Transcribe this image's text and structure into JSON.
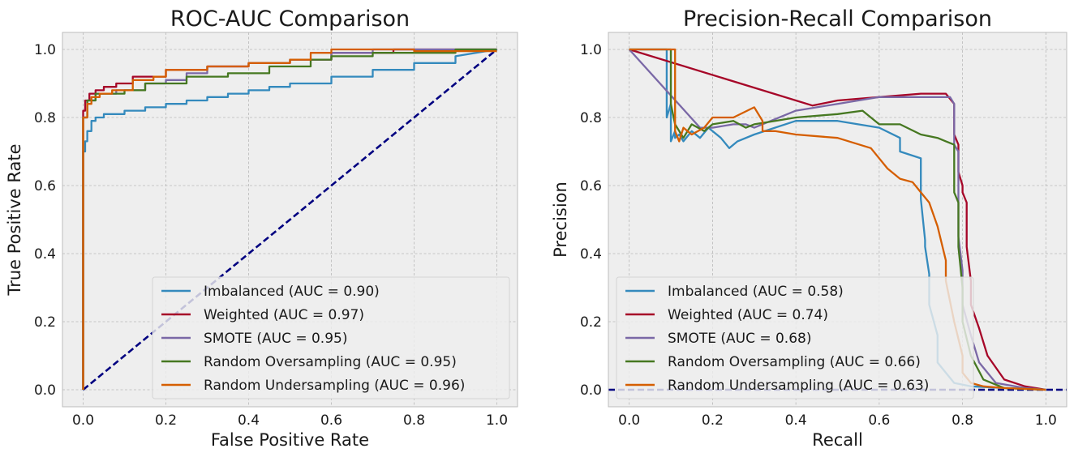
{
  "chart_data": [
    {
      "type": "line",
      "title": "ROC-AUC Comparison",
      "xlabel": "False Positive Rate",
      "ylabel": "True Positive Rate",
      "xlim": [
        -0.05,
        1.05
      ],
      "ylim": [
        -0.05,
        1.05
      ],
      "xticks": [
        "0.0",
        "0.2",
        "0.4",
        "0.6",
        "0.8",
        "1.0"
      ],
      "yticks": [
        "0.0",
        "0.2",
        "0.4",
        "0.6",
        "0.8",
        "1.0"
      ],
      "grid": true,
      "legend": "lower-right",
      "reference_line": {
        "x": [
          0,
          1
        ],
        "y": [
          0,
          1
        ],
        "color": "#000080",
        "style": "dashed"
      },
      "series": [
        {
          "name": "Imbalanced (AUC = 0.90)",
          "color": "#348abd",
          "x": [
            0,
            0,
            0.005,
            0.005,
            0.01,
            0.01,
            0.02,
            0.02,
            0.03,
            0.03,
            0.05,
            0.05,
            0.1,
            0.1,
            0.15,
            0.15,
            0.2,
            0.2,
            0.25,
            0.25,
            0.3,
            0.3,
            0.35,
            0.35,
            0.4,
            0.4,
            0.45,
            0.45,
            0.5,
            0.5,
            0.6,
            0.6,
            0.7,
            0.7,
            0.8,
            0.8,
            0.9,
            0.9,
            1.0
          ],
          "y": [
            0,
            0.7,
            0.7,
            0.73,
            0.73,
            0.76,
            0.76,
            0.79,
            0.79,
            0.8,
            0.8,
            0.81,
            0.81,
            0.82,
            0.82,
            0.83,
            0.83,
            0.84,
            0.84,
            0.85,
            0.85,
            0.86,
            0.86,
            0.87,
            0.87,
            0.88,
            0.88,
            0.89,
            0.89,
            0.9,
            0.9,
            0.92,
            0.92,
            0.94,
            0.94,
            0.96,
            0.96,
            0.98,
            1.0
          ]
        },
        {
          "name": "Weighted (AUC = 0.97)",
          "color": "#a60628",
          "x": [
            0,
            0,
            0.005,
            0.005,
            0.015,
            0.015,
            0.03,
            0.03,
            0.05,
            0.05,
            0.08,
            0.08,
            0.12,
            0.12,
            0.2,
            0.2,
            0.3,
            0.3,
            0.4,
            0.4,
            0.5,
            0.5,
            0.6,
            0.6,
            0.75,
            0.75,
            1.0
          ],
          "y": [
            0,
            0.82,
            0.82,
            0.85,
            0.85,
            0.87,
            0.87,
            0.88,
            0.88,
            0.89,
            0.89,
            0.9,
            0.9,
            0.92,
            0.92,
            0.94,
            0.94,
            0.95,
            0.95,
            0.96,
            0.96,
            0.97,
            0.97,
            0.99,
            0.99,
            1.0,
            1.0
          ]
        },
        {
          "name": "SMOTE (AUC = 0.95)",
          "color": "#7a68a6",
          "x": [
            0,
            0,
            0.01,
            0.01,
            0.03,
            0.03,
            0.08,
            0.08,
            0.15,
            0.15,
            0.2,
            0.2,
            0.25,
            0.25,
            0.3,
            0.3,
            0.4,
            0.4,
            0.5,
            0.5,
            0.6,
            0.6,
            0.7,
            0.7,
            1.0
          ],
          "y": [
            0,
            0.8,
            0.8,
            0.85,
            0.85,
            0.87,
            0.87,
            0.88,
            0.88,
            0.9,
            0.9,
            0.91,
            0.91,
            0.93,
            0.93,
            0.95,
            0.95,
            0.96,
            0.96,
            0.97,
            0.97,
            0.99,
            0.99,
            1.0,
            1.0
          ]
        },
        {
          "name": "Random Oversampling (AUC = 0.95)",
          "color": "#467821",
          "x": [
            0,
            0,
            0.01,
            0.01,
            0.03,
            0.03,
            0.1,
            0.1,
            0.15,
            0.15,
            0.25,
            0.25,
            0.35,
            0.35,
            0.45,
            0.45,
            0.55,
            0.55,
            0.6,
            0.6,
            0.7,
            0.7,
            0.9,
            0.9,
            1.0
          ],
          "y": [
            0,
            0.8,
            0.8,
            0.85,
            0.85,
            0.87,
            0.87,
            0.88,
            0.88,
            0.9,
            0.9,
            0.92,
            0.92,
            0.93,
            0.93,
            0.95,
            0.95,
            0.97,
            0.97,
            0.98,
            0.98,
            0.99,
            0.99,
            1.0,
            1.0
          ]
        },
        {
          "name": "Random Undersampling (AUC = 0.96)",
          "color": "#d55e00",
          "x": [
            0,
            0,
            0.01,
            0.01,
            0.02,
            0.02,
            0.04,
            0.04,
            0.07,
            0.07,
            0.12,
            0.12,
            0.17,
            0.17,
            0.2,
            0.2,
            0.3,
            0.3,
            0.4,
            0.4,
            0.5,
            0.5,
            0.55,
            0.55,
            0.6,
            0.6,
            0.8,
            0.8,
            1.0
          ],
          "y": [
            0,
            0.8,
            0.8,
            0.84,
            0.84,
            0.86,
            0.86,
            0.87,
            0.87,
            0.88,
            0.88,
            0.91,
            0.91,
            0.92,
            0.92,
            0.94,
            0.94,
            0.95,
            0.95,
            0.96,
            0.96,
            0.97,
            0.97,
            0.99,
            0.99,
            1.0,
            1.0,
            0.995,
            0.995
          ]
        }
      ]
    },
    {
      "type": "line",
      "title": "Precision-Recall Comparison",
      "xlabel": "Recall",
      "ylabel": "Precision",
      "xlim": [
        -0.05,
        1.05
      ],
      "ylim": [
        -0.05,
        1.05
      ],
      "xticks": [
        "0.0",
        "0.2",
        "0.4",
        "0.6",
        "0.8",
        "1.0"
      ],
      "yticks": [
        "0.0",
        "0.2",
        "0.4",
        "0.6",
        "0.8",
        "1.0"
      ],
      "grid": true,
      "legend": "lower-left",
      "reference_line": {
        "x": [
          -0.05,
          1.05
        ],
        "y": [
          0,
          0
        ],
        "color": "#000080",
        "style": "dashed"
      },
      "series": [
        {
          "name": "Imbalanced (AUC = 0.58)",
          "color": "#348abd",
          "x": [
            0,
            0.09,
            0.09,
            0.1,
            0.1,
            0.11,
            0.11,
            0.12,
            0.13,
            0.15,
            0.17,
            0.19,
            0.22,
            0.24,
            0.26,
            0.3,
            0.4,
            0.5,
            0.6,
            0.65,
            0.65,
            0.7,
            0.7,
            0.71,
            0.71,
            0.72,
            0.72,
            0.74,
            0.74,
            0.76,
            0.78,
            0.82,
            0.9,
            1.0
          ],
          "y": [
            1.0,
            1.0,
            0.8,
            0.84,
            0.73,
            0.76,
            0.74,
            0.75,
            0.73,
            0.76,
            0.74,
            0.77,
            0.74,
            0.71,
            0.73,
            0.75,
            0.79,
            0.79,
            0.77,
            0.74,
            0.7,
            0.68,
            0.56,
            0.44,
            0.42,
            0.34,
            0.25,
            0.16,
            0.08,
            0.05,
            0.02,
            0.01,
            0.005,
            0.0
          ]
        },
        {
          "name": "Weighted (AUC = 0.74)",
          "color": "#a60628",
          "x": [
            0,
            0.44,
            0.5,
            0.6,
            0.7,
            0.76,
            0.78,
            0.78,
            0.79,
            0.79,
            0.8,
            0.8,
            0.81,
            0.81,
            0.82,
            0.82,
            0.84,
            0.86,
            0.9,
            0.95,
            1.0
          ],
          "y": [
            1.0,
            0.835,
            0.85,
            0.86,
            0.87,
            0.87,
            0.84,
            0.75,
            0.72,
            0.64,
            0.6,
            0.58,
            0.55,
            0.42,
            0.32,
            0.25,
            0.18,
            0.1,
            0.03,
            0.01,
            0.0
          ]
        },
        {
          "name": "SMOTE (AUC = 0.68)",
          "color": "#7a68a6",
          "x": [
            0,
            0.17,
            0.2,
            0.25,
            0.28,
            0.3,
            0.4,
            0.5,
            0.6,
            0.7,
            0.77,
            0.78,
            0.78,
            0.79,
            0.79,
            0.8,
            0.8,
            0.82,
            0.84,
            0.88,
            0.95,
            1.0
          ],
          "y": [
            1.0,
            0.77,
            0.77,
            0.78,
            0.78,
            0.77,
            0.82,
            0.84,
            0.86,
            0.86,
            0.86,
            0.84,
            0.72,
            0.7,
            0.45,
            0.35,
            0.25,
            0.16,
            0.08,
            0.02,
            0.005,
            0.0
          ]
        },
        {
          "name": "Random Oversampling (AUC = 0.66)",
          "color": "#467821",
          "x": [
            0,
            0.1,
            0.1,
            0.11,
            0.13,
            0.15,
            0.18,
            0.2,
            0.25,
            0.28,
            0.3,
            0.35,
            0.4,
            0.5,
            0.56,
            0.58,
            0.6,
            0.65,
            0.7,
            0.74,
            0.76,
            0.78,
            0.78,
            0.79,
            0.79,
            0.8,
            0.8,
            0.82,
            0.85,
            0.9,
            1.0
          ],
          "y": [
            1.0,
            1.0,
            0.84,
            0.78,
            0.74,
            0.78,
            0.76,
            0.78,
            0.79,
            0.77,
            0.78,
            0.79,
            0.8,
            0.81,
            0.82,
            0.8,
            0.78,
            0.78,
            0.75,
            0.74,
            0.73,
            0.72,
            0.58,
            0.55,
            0.42,
            0.3,
            0.2,
            0.1,
            0.03,
            0.005,
            0.0
          ]
        },
        {
          "name": "Random Undersampling (AUC = 0.63)",
          "color": "#d55e00",
          "x": [
            0,
            0.11,
            0.11,
            0.12,
            0.13,
            0.15,
            0.18,
            0.2,
            0.25,
            0.3,
            0.32,
            0.32,
            0.35,
            0.4,
            0.5,
            0.58,
            0.62,
            0.65,
            0.68,
            0.7,
            0.72,
            0.74,
            0.76,
            0.76,
            0.78,
            0.8,
            0.8,
            0.82,
            0.85,
            0.9,
            1.0
          ],
          "y": [
            1.0,
            1.0,
            0.76,
            0.73,
            0.77,
            0.75,
            0.77,
            0.8,
            0.8,
            0.83,
            0.79,
            0.76,
            0.76,
            0.75,
            0.74,
            0.71,
            0.65,
            0.62,
            0.61,
            0.58,
            0.55,
            0.48,
            0.38,
            0.32,
            0.2,
            0.1,
            0.05,
            0.02,
            0.01,
            0.005,
            0.0
          ]
        }
      ]
    }
  ]
}
